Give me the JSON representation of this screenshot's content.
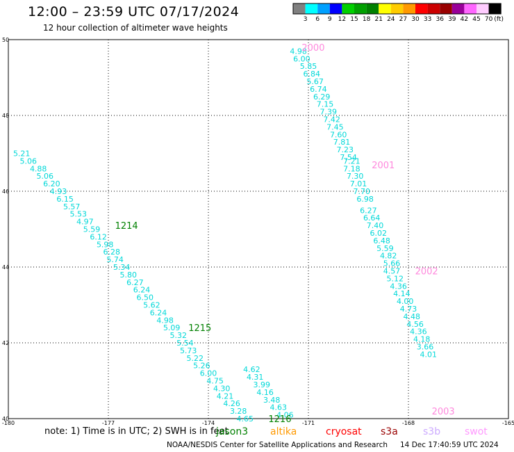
{
  "header": {
    "title": "12:00 – 23:59 UTC 07/17/2024",
    "subtitle": "12 hour collection of altimeter wave heights"
  },
  "colorbar": {
    "unit": "(ft)",
    "colors": [
      "#808080",
      "#00ffff",
      "#00a0ff",
      "#0000ff",
      "#00d000",
      "#00a000",
      "#008000",
      "#ffff00",
      "#ffcc00",
      "#ff9900",
      "#ff0000",
      "#cc0000",
      "#990000",
      "#990099",
      "#ff66ff",
      "#ffccff",
      "#000000"
    ],
    "labels": [
      "3",
      "6",
      "9",
      "12",
      "15",
      "18",
      "21",
      "24",
      "27",
      "30",
      "33",
      "36",
      "39",
      "42",
      "45",
      "70"
    ]
  },
  "footer": {
    "note": "note:  1) Time is in UTC;  2) SWH is in feet",
    "credit": "NOAA/NESDIS Center for Satellite Applications and Research",
    "timestamp": "14 Dec 17:40:59 UTC 2024"
  },
  "legend_satellites": [
    {
      "name": "jason3",
      "color": "#008000"
    },
    {
      "name": "altika",
      "color": "#ff9900"
    },
    {
      "name": "cryosat",
      "color": "#ff0000"
    },
    {
      "name": "s3a",
      "color": "#990000"
    },
    {
      "name": "s3b",
      "color": "#ccaaff"
    },
    {
      "name": "swot",
      "color": "#ff99ff"
    }
  ],
  "chart_data": {
    "type": "scatter",
    "title": "12:00 – 23:59 UTC 07/17/2024",
    "subtitle": "12 hour collection of altimeter wave heights",
    "xlim": [
      -180,
      -165
    ],
    "ylim": [
      40,
      50
    ],
    "x_ticks": [
      -180,
      -177,
      -174,
      -171,
      -168,
      -165
    ],
    "y_ticks": [
      40,
      42,
      44,
      46,
      48,
      50
    ],
    "grid": true,
    "series": [
      {
        "name": "jason3",
        "color": "#00d8d8",
        "points": [
          [
            -179.6,
            47.0,
            "5.21"
          ],
          [
            -179.4,
            46.8,
            "5.06"
          ],
          [
            -179.1,
            46.6,
            "4.88"
          ],
          [
            -178.9,
            46.4,
            "5.06"
          ],
          [
            -178.7,
            46.2,
            "6.20"
          ],
          [
            -178.5,
            46.0,
            "4.93"
          ],
          [
            -178.3,
            45.8,
            "6.15"
          ],
          [
            -178.1,
            45.6,
            "5.57"
          ],
          [
            -177.9,
            45.4,
            "5.53"
          ],
          [
            -177.7,
            45.2,
            "4.97"
          ],
          [
            -177.5,
            45.0,
            "5.59"
          ],
          [
            -177.3,
            44.8,
            "6.12"
          ],
          [
            -177.1,
            44.6,
            "5.98"
          ],
          [
            -176.9,
            44.4,
            "6.28"
          ],
          [
            -176.8,
            44.2,
            "5.74"
          ],
          [
            -176.6,
            44.0,
            "5.34"
          ],
          [
            -176.4,
            43.8,
            "5.80"
          ],
          [
            -176.2,
            43.6,
            "6.27"
          ],
          [
            -176.0,
            43.4,
            "6.24"
          ],
          [
            -175.9,
            43.2,
            "6.50"
          ],
          [
            -175.7,
            43.0,
            "5.62"
          ],
          [
            -175.5,
            42.8,
            "6.24"
          ],
          [
            -175.3,
            42.6,
            "4.98"
          ],
          [
            -175.1,
            42.4,
            "5.09"
          ],
          [
            -174.9,
            42.2,
            "5.32"
          ],
          [
            -174.7,
            42.0,
            "5.54"
          ],
          [
            -174.6,
            41.8,
            "5.73"
          ],
          [
            -174.4,
            41.6,
            "5.22"
          ],
          [
            -174.2,
            41.4,
            "5.26"
          ],
          [
            -174.0,
            41.2,
            "6.00"
          ],
          [
            -173.8,
            41.0,
            "4.75"
          ],
          [
            -173.6,
            40.8,
            "4.30"
          ],
          [
            -173.5,
            40.6,
            "4.21"
          ],
          [
            -173.3,
            40.4,
            "4.26"
          ],
          [
            -173.1,
            40.2,
            "3.28"
          ],
          [
            -172.9,
            40.0,
            "4.65"
          ],
          [
            -172.7,
            41.3,
            "4.62"
          ],
          [
            -172.6,
            41.1,
            "4.31"
          ],
          [
            -172.4,
            40.9,
            "3.99"
          ],
          [
            -172.3,
            40.7,
            "4.16"
          ],
          [
            -172.1,
            40.5,
            "3.48"
          ],
          [
            -171.9,
            40.3,
            "4.63"
          ],
          [
            -171.7,
            40.1,
            "4.06"
          ]
        ]
      },
      {
        "name": "swot",
        "color": "#00d8d8",
        "points": [
          [
            -171.3,
            49.7,
            "4.98"
          ],
          [
            -171.2,
            49.5,
            "6.00"
          ],
          [
            -171.0,
            49.3,
            "5.85"
          ],
          [
            -170.9,
            49.1,
            "6.84"
          ],
          [
            -170.8,
            48.9,
            "5.67"
          ],
          [
            -170.7,
            48.7,
            "6.74"
          ],
          [
            -170.6,
            48.5,
            "6.29"
          ],
          [
            -170.5,
            48.3,
            "7.15"
          ],
          [
            -170.4,
            48.1,
            "7.39"
          ],
          [
            -170.3,
            47.9,
            "7.42"
          ],
          [
            -170.2,
            47.7,
            "7.45"
          ],
          [
            -170.1,
            47.5,
            "7.60"
          ],
          [
            -170.0,
            47.3,
            "7.81"
          ],
          [
            -169.9,
            47.1,
            "7.23"
          ],
          [
            -169.8,
            46.9,
            "7.54"
          ],
          [
            -169.7,
            46.8,
            "7.21"
          ],
          [
            -169.7,
            46.6,
            "7.18"
          ],
          [
            -169.6,
            46.4,
            "7.30"
          ],
          [
            -169.5,
            46.2,
            "7.01"
          ],
          [
            -169.4,
            46.0,
            "7.70"
          ],
          [
            -169.3,
            45.8,
            "6.98"
          ],
          [
            -169.2,
            45.5,
            "6.27"
          ],
          [
            -169.1,
            45.3,
            "6.64"
          ],
          [
            -169.0,
            45.1,
            "7.40"
          ],
          [
            -168.9,
            44.9,
            "6.02"
          ],
          [
            -168.8,
            44.7,
            "6.48"
          ],
          [
            -168.7,
            44.5,
            "5.59"
          ],
          [
            -168.6,
            44.3,
            "4.82"
          ],
          [
            -168.5,
            44.1,
            "5.66"
          ],
          [
            -168.5,
            43.9,
            "4.57"
          ],
          [
            -168.4,
            43.7,
            "5.12"
          ],
          [
            -168.3,
            43.5,
            "4.36"
          ],
          [
            -168.2,
            43.3,
            "4.14"
          ],
          [
            -168.1,
            43.1,
            "4.00"
          ],
          [
            -168.0,
            42.9,
            "4.73"
          ],
          [
            -167.9,
            42.7,
            "4.48"
          ],
          [
            -167.8,
            42.5,
            "4.56"
          ],
          [
            -167.7,
            42.3,
            "4.36"
          ],
          [
            -167.6,
            42.1,
            "4.18"
          ],
          [
            -167.5,
            41.9,
            "3.66"
          ],
          [
            -167.4,
            41.7,
            "4.01"
          ]
        ]
      }
    ],
    "annotations": [
      {
        "text": "1214",
        "x": -176.8,
        "y": 45.1,
        "color": "#008000"
      },
      {
        "text": "1215",
        "x": -174.6,
        "y": 42.4,
        "color": "#008000"
      },
      {
        "text": "1216",
        "x": -172.2,
        "y": 40.0,
        "color": "#008000"
      },
      {
        "text": "2000",
        "x": -171.2,
        "y": 49.8,
        "color": "#ff88dd"
      },
      {
        "text": "2001",
        "x": -169.1,
        "y": 46.7,
        "color": "#ff88dd"
      },
      {
        "text": "2002",
        "x": -167.8,
        "y": 43.9,
        "color": "#ff88dd"
      },
      {
        "text": "2003",
        "x": -167.3,
        "y": 40.2,
        "color": "#ff88dd"
      }
    ]
  }
}
